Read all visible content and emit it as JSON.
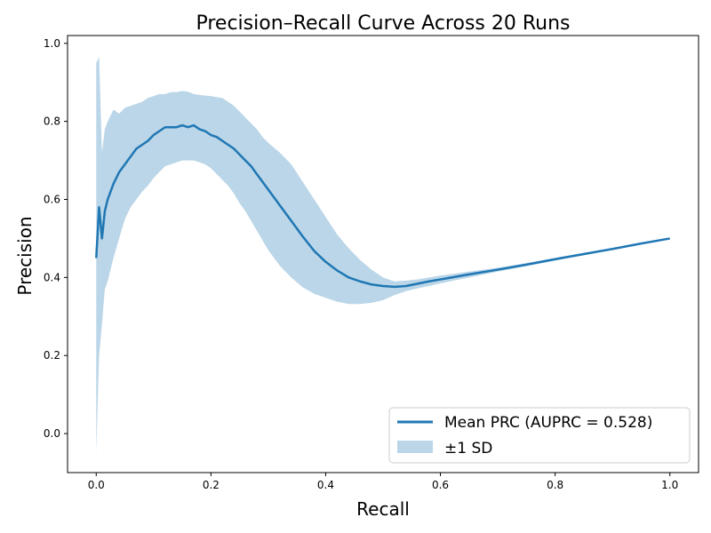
{
  "chart_data": {
    "type": "line",
    "title": "Precision–Recall Curve Across 20 Runs",
    "xlabel": "Recall",
    "ylabel": "Precision",
    "xlim": [
      -0.05,
      1.05
    ],
    "ylim": [
      -0.1,
      1.02
    ],
    "xticks": [
      0.0,
      0.2,
      0.4,
      0.6,
      0.8,
      1.0
    ],
    "xtick_labels": [
      "0.0",
      "0.2",
      "0.4",
      "0.6",
      "0.8",
      "1.0"
    ],
    "yticks": [
      0.0,
      0.2,
      0.4,
      0.6,
      0.8,
      1.0
    ],
    "ytick_labels": [
      "0.0",
      "0.2",
      "0.4",
      "0.6",
      "0.8",
      "1.0"
    ],
    "grid": false,
    "legend_position": "lower-right",
    "series": [
      {
        "name": "Mean PRC (AUPRC = 0.528)",
        "kind": "line",
        "color": "#1f77b4",
        "x": [
          0.0,
          0.005,
          0.01,
          0.015,
          0.02,
          0.03,
          0.04,
          0.05,
          0.06,
          0.07,
          0.08,
          0.09,
          0.1,
          0.11,
          0.12,
          0.13,
          0.14,
          0.15,
          0.16,
          0.17,
          0.18,
          0.19,
          0.2,
          0.21,
          0.22,
          0.23,
          0.24,
          0.25,
          0.26,
          0.27,
          0.28,
          0.29,
          0.3,
          0.32,
          0.34,
          0.36,
          0.38,
          0.4,
          0.42,
          0.44,
          0.46,
          0.48,
          0.5,
          0.52,
          0.54,
          0.56,
          0.58,
          0.6,
          0.65,
          0.7,
          0.75,
          0.8,
          0.85,
          0.9,
          0.95,
          1.0
        ],
        "y": [
          0.45,
          0.58,
          0.5,
          0.57,
          0.6,
          0.64,
          0.67,
          0.69,
          0.71,
          0.73,
          0.74,
          0.75,
          0.765,
          0.775,
          0.785,
          0.785,
          0.785,
          0.79,
          0.785,
          0.79,
          0.78,
          0.775,
          0.765,
          0.76,
          0.75,
          0.74,
          0.73,
          0.715,
          0.7,
          0.685,
          0.665,
          0.645,
          0.625,
          0.585,
          0.545,
          0.505,
          0.468,
          0.44,
          0.418,
          0.4,
          0.39,
          0.382,
          0.378,
          0.376,
          0.378,
          0.384,
          0.39,
          0.395,
          0.408,
          0.42,
          0.433,
          0.447,
          0.46,
          0.473,
          0.487,
          0.5
        ]
      },
      {
        "name": "±1 SD",
        "kind": "band",
        "color": "#1f77b4",
        "opacity": 0.3,
        "x": [
          0.0,
          0.005,
          0.01,
          0.015,
          0.02,
          0.03,
          0.04,
          0.05,
          0.06,
          0.07,
          0.08,
          0.09,
          0.1,
          0.11,
          0.12,
          0.13,
          0.14,
          0.15,
          0.16,
          0.17,
          0.18,
          0.19,
          0.2,
          0.21,
          0.22,
          0.23,
          0.24,
          0.25,
          0.26,
          0.27,
          0.28,
          0.29,
          0.3,
          0.32,
          0.34,
          0.36,
          0.38,
          0.4,
          0.42,
          0.44,
          0.46,
          0.48,
          0.5,
          0.52,
          0.54,
          0.56,
          0.58,
          0.6,
          0.65,
          0.7,
          0.75,
          0.8,
          0.85,
          0.9,
          0.95,
          1.0
        ],
        "upper": [
          0.95,
          0.965,
          0.72,
          0.78,
          0.8,
          0.83,
          0.82,
          0.835,
          0.84,
          0.845,
          0.85,
          0.86,
          0.865,
          0.87,
          0.87,
          0.875,
          0.875,
          0.878,
          0.876,
          0.87,
          0.868,
          0.866,
          0.865,
          0.862,
          0.86,
          0.85,
          0.84,
          0.825,
          0.81,
          0.795,
          0.78,
          0.76,
          0.745,
          0.72,
          0.69,
          0.645,
          0.6,
          0.555,
          0.51,
          0.475,
          0.445,
          0.42,
          0.4,
          0.39,
          0.392,
          0.395,
          0.4,
          0.405,
          0.415,
          0.425,
          0.437,
          0.45,
          0.463,
          0.475,
          0.488,
          0.5
        ],
        "lower": [
          -0.05,
          0.2,
          0.28,
          0.37,
          0.39,
          0.45,
          0.5,
          0.55,
          0.58,
          0.6,
          0.62,
          0.635,
          0.655,
          0.67,
          0.685,
          0.69,
          0.695,
          0.7,
          0.7,
          0.7,
          0.695,
          0.69,
          0.68,
          0.665,
          0.65,
          0.635,
          0.615,
          0.59,
          0.57,
          0.545,
          0.52,
          0.495,
          0.47,
          0.43,
          0.4,
          0.375,
          0.358,
          0.348,
          0.338,
          0.332,
          0.332,
          0.335,
          0.342,
          0.355,
          0.365,
          0.372,
          0.378,
          0.385,
          0.4,
          0.415,
          0.429,
          0.443,
          0.457,
          0.472,
          0.486,
          0.5
        ]
      }
    ]
  }
}
